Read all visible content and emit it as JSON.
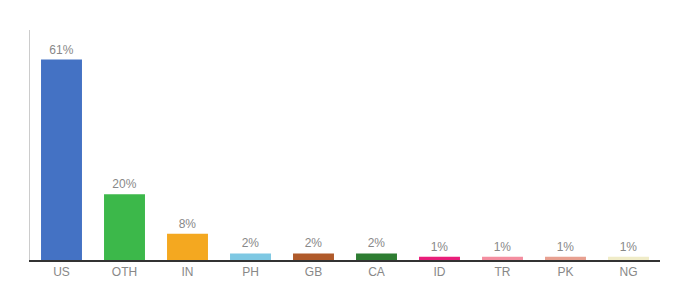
{
  "chart_data": {
    "type": "bar",
    "categories": [
      "US",
      "OTH",
      "IN",
      "PH",
      "GB",
      "CA",
      "ID",
      "TR",
      "PK",
      "NG"
    ],
    "values": [
      61,
      20,
      8,
      2,
      2,
      2,
      1,
      1,
      1,
      1
    ],
    "value_labels": [
      "61%",
      "20%",
      "8%",
      "2%",
      "2%",
      "2%",
      "1%",
      "1%",
      "1%",
      "1%"
    ],
    "colors": [
      "#4472C4",
      "#3CB84A",
      "#F4A820",
      "#7EC8E3",
      "#B05A2A",
      "#2E7D32",
      "#E91E7A",
      "#F48EA0",
      "#E8A090",
      "#F0ECC8"
    ],
    "ylim": [
      0,
      70
    ],
    "grid": false,
    "data_labels": true,
    "tick_labels": "x"
  }
}
